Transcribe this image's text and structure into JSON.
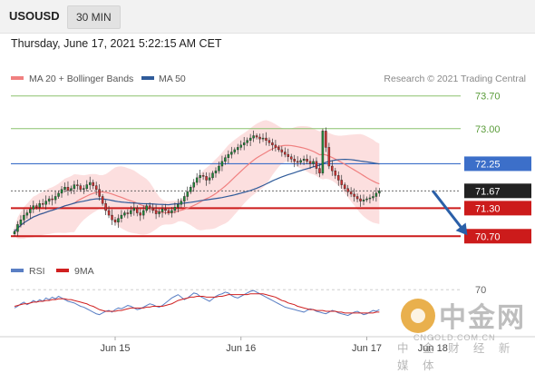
{
  "header": {
    "symbol": "USOUSD",
    "timeframe": "30 MIN",
    "datetime": "Thursday, June 17, 2021 5:22:15 AM CET"
  },
  "legend": {
    "ma20_label": "MA 20 + Bollinger Bands",
    "ma50_label": "MA 50",
    "credit": "Research © 2021 Trading Central",
    "rsi_label": "RSI",
    "ma9_label": "9MA"
  },
  "colors": {
    "candle_up": "#1f8a3a",
    "candle_down": "#d03030",
    "ma20": "#f08080",
    "bollinger_fill": "#fbd7d7",
    "ma50": "#2f5b9a",
    "support": "#cc1b1b",
    "resistance_green": "#8cc26e",
    "pivot_blue": "#3c6fc9",
    "last_price": "#222222",
    "rsi": "#5a7fc4",
    "rsi_ma": "#d02020",
    "arrow": "#2a5fa8"
  },
  "watermark": {
    "name": "中金网",
    "url": "CNGOLD.COM.CN",
    "sub": "中 金 财 经 新 媒 体"
  },
  "chart_data": {
    "type": "candlestick",
    "ylim": [
      70.55,
      73.85
    ],
    "x_ticks": [
      {
        "label": "Jun 15",
        "index": 32
      },
      {
        "label": "Jun 16",
        "index": 72
      },
      {
        "label": "Jun 17",
        "index": 112
      },
      {
        "label": "Jun 18",
        "index": 133
      }
    ],
    "levels": [
      {
        "value": 73.7,
        "label": "73.70",
        "style": "resistance"
      },
      {
        "value": 73.0,
        "label": "73.00",
        "style": "resistance"
      },
      {
        "value": 72.25,
        "label": "72.25",
        "style": "pivot"
      },
      {
        "value": 71.67,
        "label": "71.67",
        "style": "last"
      },
      {
        "value": 71.3,
        "label": "71.30",
        "style": "support"
      },
      {
        "value": 70.7,
        "label": "70.70",
        "style": "support"
      }
    ],
    "forecast_arrow": {
      "from_index": 133,
      "from_value": 71.67,
      "to_index": 144,
      "to_value": 70.72
    },
    "closes": [
      70.8,
      70.95,
      71.05,
      71.15,
      71.2,
      71.28,
      71.35,
      71.32,
      71.4,
      71.38,
      71.45,
      71.5,
      71.48,
      71.55,
      71.62,
      71.7,
      71.75,
      71.68,
      71.72,
      71.8,
      71.78,
      71.7,
      71.72,
      71.8,
      71.85,
      71.78,
      71.7,
      71.55,
      71.4,
      71.25,
      71.15,
      71.05,
      71.0,
      71.08,
      71.15,
      71.2,
      71.18,
      71.25,
      71.3,
      71.2,
      71.15,
      71.25,
      71.35,
      71.3,
      71.25,
      71.18,
      71.22,
      71.28,
      71.25,
      71.2,
      71.25,
      71.32,
      71.38,
      71.45,
      71.55,
      71.65,
      71.75,
      71.85,
      71.95,
      72.0,
      71.98,
      71.9,
      71.95,
      72.05,
      72.1,
      72.2,
      72.3,
      72.38,
      72.45,
      72.5,
      72.55,
      72.6,
      72.65,
      72.7,
      72.75,
      72.8,
      72.85,
      72.82,
      72.78,
      72.8,
      72.75,
      72.7,
      72.65,
      72.6,
      72.55,
      72.5,
      72.45,
      72.4,
      72.35,
      72.3,
      72.28,
      72.32,
      72.35,
      72.3,
      72.25,
      72.3,
      72.15,
      72.05,
      72.95,
      72.6,
      72.2,
      72.1,
      72.0,
      71.9,
      71.8,
      71.72,
      71.65,
      71.6,
      71.55,
      71.5,
      71.45,
      71.48,
      71.5,
      71.52,
      71.55,
      71.62,
      71.67
    ],
    "rsi": {
      "ylim": [
        20,
        80
      ],
      "ref_label": "70",
      "ref_value": 70,
      "values": [
        48,
        50,
        53,
        55,
        52,
        54,
        57,
        55,
        58,
        56,
        60,
        58,
        61,
        59,
        62,
        60,
        58,
        56,
        55,
        54,
        52,
        50,
        49,
        47,
        45,
        43,
        41,
        40,
        42,
        44,
        45,
        43,
        46,
        48,
        47,
        49,
        51,
        50,
        48,
        46,
        47,
        49,
        51,
        53,
        52,
        50,
        49,
        51,
        54,
        57,
        60,
        62,
        64,
        61,
        58,
        60,
        63,
        66,
        65,
        62,
        60,
        58,
        56,
        59,
        62,
        64,
        65,
        67,
        66,
        63,
        61,
        60,
        62,
        64,
        66,
        68,
        69,
        67,
        65,
        63,
        61,
        59,
        57,
        55,
        53,
        51,
        49,
        48,
        47,
        46,
        45,
        44,
        43,
        45,
        47,
        46,
        44,
        43,
        42,
        41,
        43,
        45,
        44,
        42,
        41,
        40,
        39,
        41,
        43,
        44,
        42,
        40,
        41,
        43,
        45,
        44,
        46
      ],
      "ma_values": [
        50,
        51,
        52,
        53,
        53,
        54,
        55,
        55,
        56,
        56,
        57,
        57,
        58,
        58,
        59,
        59,
        59,
        58,
        58,
        57,
        56,
        55,
        54,
        53,
        51,
        50,
        48,
        46,
        45,
        44,
        44,
        44,
        44,
        45,
        45,
        46,
        47,
        48,
        48,
        48,
        48,
        48,
        49,
        49,
        50,
        50,
        50,
        50,
        51,
        52,
        53,
        55,
        57,
        58,
        59,
        60,
        61,
        61,
        62,
        62,
        62,
        61,
        61,
        61,
        61,
        62,
        62,
        63,
        64,
        64,
        64,
        64,
        64,
        64,
        64,
        65,
        65,
        65,
        65,
        65,
        64,
        63,
        62,
        61,
        59,
        57,
        56,
        54,
        53,
        52,
        50,
        49,
        48,
        47,
        46,
        46,
        45,
        45,
        45,
        44,
        44,
        44,
        44,
        43,
        43,
        42,
        42,
        42,
        42,
        42,
        42,
        42,
        42,
        42,
        42,
        43,
        43
      ]
    }
  }
}
